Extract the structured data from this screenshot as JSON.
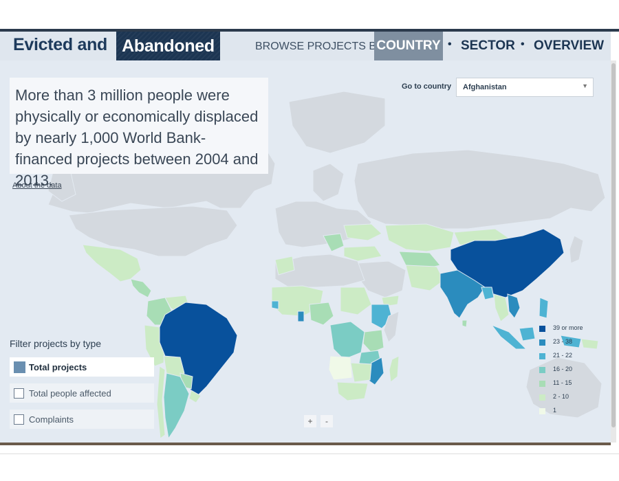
{
  "header": {
    "logo_left": "Evicted and",
    "logo_right": "Abandoned",
    "browse_label": "BROWSE PROJECTS BY:",
    "nav": [
      {
        "label": "COUNTRY",
        "active": true
      },
      {
        "label": "SECTOR",
        "active": false
      },
      {
        "label": "OVERVIEW",
        "active": false
      }
    ],
    "separator": "•"
  },
  "intro": {
    "text": "More than 3 million people were physically or economically displaced by nearly 1,000 World Bank-financed projects between 2004 and 2013.",
    "about_link": "About the data"
  },
  "country_select": {
    "label": "Go to country",
    "value": "Afghanistan"
  },
  "filter": {
    "title": "Filter projects by type",
    "options": [
      {
        "label": "Total projects",
        "selected": true
      },
      {
        "label": "Total people affected",
        "selected": false
      },
      {
        "label": "Complaints",
        "selected": false
      }
    ]
  },
  "zoom": {
    "in": "+",
    "out": "-"
  },
  "legend": [
    {
      "label": "39 or more",
      "color": "#08519c"
    },
    {
      "label": "23 - 38",
      "color": "#2b8cbe"
    },
    {
      "label": "21 - 22",
      "color": "#4eb3d3"
    },
    {
      "label": "16 - 20",
      "color": "#7bccc4"
    },
    {
      "label": "11 - 15",
      "color": "#a8ddb5"
    },
    {
      "label": "2 - 10",
      "color": "#ccebc5"
    },
    {
      "label": "1",
      "color": "#f0f9e8"
    }
  ],
  "map_colors": {
    "ocean": "#e3eaf2",
    "no_data": "#d4d9df"
  },
  "countries": [
    {
      "name": "China",
      "tier": 0
    },
    {
      "name": "Brazil",
      "tier": 0
    },
    {
      "name": "India",
      "tier": 1
    },
    {
      "name": "Mozambique",
      "tier": 1
    },
    {
      "name": "Ghana",
      "tier": 1
    },
    {
      "name": "Vietnam",
      "tier": 1
    },
    {
      "name": "Philippines",
      "tier": 2
    },
    {
      "name": "Indonesia",
      "tier": 2
    },
    {
      "name": "Ethiopia",
      "tier": 2
    },
    {
      "name": "Argentina",
      "tier": 3
    },
    {
      "name": "Congo DR",
      "tier": 3
    },
    {
      "name": "Tanzania",
      "tier": 3
    },
    {
      "name": "Nigeria",
      "tier": 4
    },
    {
      "name": "Colombia",
      "tier": 4
    },
    {
      "name": "Kenya",
      "tier": 4
    },
    {
      "name": "Mexico",
      "tier": 5
    },
    {
      "name": "Peru",
      "tier": 5
    },
    {
      "name": "Russia",
      "tier": 5
    },
    {
      "name": "Kazakhstan",
      "tier": 5
    },
    {
      "name": "Angola",
      "tier": 6
    }
  ]
}
